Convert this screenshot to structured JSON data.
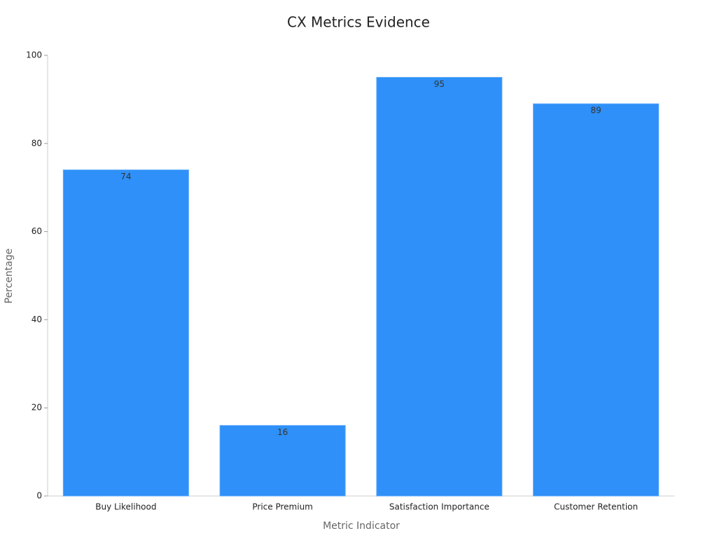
{
  "chart_data": {
    "type": "bar",
    "title": "CX Metrics Evidence",
    "x_label": "Metric Indicator",
    "y_label": "Percentage",
    "categories": [
      "Buy Likelihood",
      "Price Premium",
      "Satisfaction Importance",
      "Customer Retention"
    ],
    "values": [
      74,
      16,
      95,
      89
    ],
    "color": "#2e90f8",
    "ylim": [
      0,
      100
    ],
    "yticks": [
      0,
      20,
      40,
      60,
      80,
      100
    ],
    "grid": false
  }
}
